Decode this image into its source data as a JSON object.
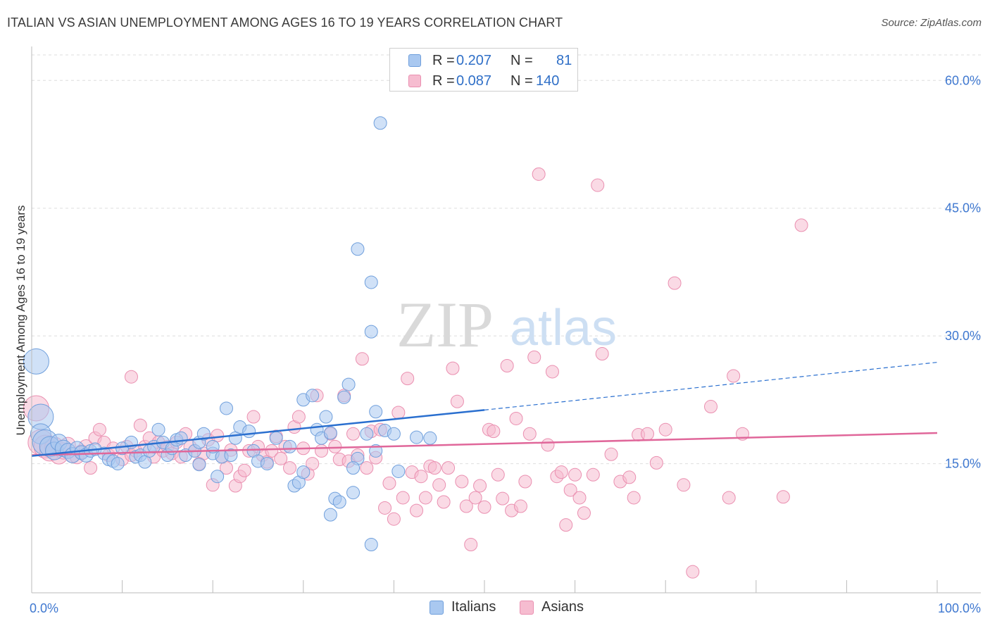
{
  "title": "ITALIAN VS ASIAN UNEMPLOYMENT AMONG AGES 16 TO 19 YEARS CORRELATION CHART",
  "source": "Source: ZipAtlas.com",
  "watermark": {
    "zip": "ZIP",
    "atlas": "atlas"
  },
  "legend": {
    "italians": {
      "r_label": "R =",
      "r_value": "0.207",
      "n_label": "N =",
      "n_value": "81"
    },
    "asians": {
      "r_label": "R =",
      "r_value": "0.087",
      "n_label": "N =",
      "n_value": "140"
    }
  },
  "bottom_legend": {
    "italians": "Italians",
    "asians": "Asians"
  },
  "colors": {
    "italians_fill": "#a9c8f0",
    "italians_stroke": "#6f9fdc",
    "italians_line": "#2a6fcf",
    "asians_fill": "#f6bcd0",
    "asians_stroke": "#ea8fb0",
    "asians_line": "#e0679a",
    "axis_text": "#3f78d0"
  },
  "chart_data": {
    "type": "scatter",
    "title": "ITALIAN VS ASIAN UNEMPLOYMENT AMONG AGES 16 TO 19 YEARS CORRELATION CHART",
    "xlabel": "",
    "ylabel": "Unemployment Among Ages 16 to 19 years",
    "xlim": [
      0,
      100
    ],
    "ylim": [
      0,
      63
    ],
    "x_tick_labels": [
      "0.0%",
      "100.0%"
    ],
    "y_ticks": [
      15,
      30,
      45,
      60
    ],
    "y_tick_labels": [
      "15.0%",
      "30.0%",
      "45.0%",
      "60.0%"
    ],
    "legend_position": "top-center",
    "series": [
      {
        "name": "Italians",
        "R": 0.207,
        "N": 81,
        "trend": {
          "x0": 0,
          "y0": 15.9,
          "x1": 50,
          "y1": 21.3,
          "dashed_to_x": 100,
          "dashed_to_y": 26.9
        },
        "points": [
          [
            0.5,
            27.0,
            2
          ],
          [
            1.0,
            20.5,
            2
          ],
          [
            1.0,
            18.5,
            1.6
          ],
          [
            1.5,
            17.5,
            2
          ],
          [
            2.0,
            17.0,
            1.6
          ],
          [
            2.5,
            16.5,
            1.4
          ],
          [
            3.0,
            17.5,
            1.3
          ],
          [
            3.5,
            16.8,
            1.3
          ],
          [
            4.0,
            16.5,
            1.2
          ],
          [
            4.5,
            16.0,
            1.2
          ],
          [
            5.0,
            16.8,
            1.1
          ],
          [
            5.5,
            16.3,
            1.1
          ],
          [
            6.0,
            16.0,
            1.1
          ],
          [
            6.5,
            16.5,
            1.0
          ],
          [
            7.0,
            16.7,
            1.0
          ],
          [
            8.0,
            16.2,
            1.0
          ],
          [
            8.5,
            15.5,
            1.0
          ],
          [
            9.0,
            15.3,
            1.0
          ],
          [
            9.5,
            15.0,
            1.0
          ],
          [
            10.0,
            16.8,
            1.0
          ],
          [
            11.0,
            17.5,
            1.0
          ],
          [
            11.5,
            15.8,
            1.0
          ],
          [
            12.0,
            16.0,
            1.0
          ],
          [
            12.5,
            15.2,
            1.0
          ],
          [
            13.0,
            16.5,
            1.0
          ],
          [
            13.5,
            17.0,
            1.0
          ],
          [
            14.0,
            19.0,
            1.0
          ],
          [
            14.5,
            17.5,
            1.0
          ],
          [
            15.0,
            16.0,
            1.0
          ],
          [
            15.5,
            16.8,
            1.0
          ],
          [
            16.0,
            17.8,
            1.0
          ],
          [
            16.5,
            18.0,
            1.0
          ],
          [
            17.0,
            16.0,
            1.0
          ],
          [
            18.0,
            16.5,
            1.0
          ],
          [
            18.5,
            14.9,
            1.0
          ],
          [
            18.5,
            17.5,
            1.0
          ],
          [
            19.0,
            18.5,
            1.0
          ],
          [
            20.0,
            16.2,
            1.0
          ],
          [
            20.0,
            17.0,
            1.0
          ],
          [
            21.0,
            15.8,
            1.0
          ],
          [
            21.5,
            21.5,
            1.0
          ],
          [
            22.0,
            16.0,
            1.0
          ],
          [
            22.5,
            18.0,
            1.0
          ],
          [
            23.0,
            19.3,
            1.0
          ],
          [
            24.0,
            18.8,
            1.0
          ],
          [
            24.5,
            16.5,
            1.0
          ],
          [
            25.0,
            15.3,
            1.0
          ],
          [
            26.0,
            15.0,
            1.0
          ],
          [
            27.0,
            18.0,
            1.0
          ],
          [
            28.5,
            17.0,
            1.0
          ],
          [
            29.0,
            12.4,
            1.0
          ],
          [
            29.5,
            12.8,
            1.0
          ],
          [
            30.0,
            14.0,
            1.0
          ],
          [
            30.0,
            22.5,
            1.0
          ],
          [
            31.0,
            23.0,
            1.0
          ],
          [
            31.5,
            19.0,
            1.0
          ],
          [
            32.0,
            18.0,
            1.0
          ],
          [
            32.5,
            20.5,
            1.0
          ],
          [
            33.0,
            18.6,
            1.0
          ],
          [
            33.5,
            10.9,
            1.0
          ],
          [
            34.0,
            10.5,
            1.0
          ],
          [
            34.5,
            22.8,
            1.0
          ],
          [
            35.0,
            24.3,
            1.0
          ],
          [
            35.5,
            11.6,
            1.0
          ],
          [
            36.0,
            15.6,
            1.0
          ],
          [
            37.0,
            18.5,
            1.0
          ],
          [
            38.0,
            16.5,
            1.0
          ],
          [
            36.0,
            40.2,
            1.0
          ],
          [
            37.5,
            36.3,
            1.0
          ],
          [
            37.5,
            30.5,
            1.0
          ],
          [
            38.0,
            21.1,
            1.0
          ],
          [
            38.5,
            55.0,
            1.0
          ],
          [
            39.0,
            18.9,
            1.0
          ],
          [
            40.0,
            18.5,
            1.0
          ],
          [
            40.5,
            14.1,
            1.0
          ],
          [
            42.5,
            18.1,
            1.0
          ],
          [
            44.0,
            18.0,
            1.0
          ],
          [
            37.5,
            5.5,
            1.0
          ],
          [
            33.0,
            9.0,
            1.0
          ],
          [
            35.5,
            14.5,
            1.0
          ],
          [
            20.5,
            13.5,
            1.0
          ]
        ]
      },
      {
        "name": "Asians",
        "R": 0.087,
        "N": 140,
        "trend": {
          "x0": 0,
          "y0": 16.0,
          "x1": 100,
          "y1": 18.6
        },
        "points": [
          [
            0.5,
            21.5,
            2
          ],
          [
            1.0,
            17.5,
            2
          ],
          [
            1.5,
            17.0,
            1.8
          ],
          [
            2.0,
            16.5,
            1.6
          ],
          [
            2.5,
            17.0,
            1.5
          ],
          [
            3.0,
            16.0,
            1.4
          ],
          [
            3.5,
            16.5,
            1.3
          ],
          [
            4.0,
            17.2,
            1.2
          ],
          [
            4.5,
            16.0,
            1.2
          ],
          [
            5.0,
            15.8,
            1.1
          ],
          [
            5.5,
            16.4,
            1.1
          ],
          [
            6.0,
            17.0,
            1.1
          ],
          [
            6.5,
            14.5,
            1.0
          ],
          [
            7.0,
            18.0,
            1.0
          ],
          [
            7.5,
            19.0,
            1.0
          ],
          [
            8.0,
            17.5,
            1.0
          ],
          [
            8.5,
            16.0,
            1.0
          ],
          [
            9.0,
            16.8,
            1.0
          ],
          [
            10.0,
            15.5,
            1.0
          ],
          [
            10.5,
            17.0,
            1.0
          ],
          [
            11.0,
            16.0,
            1.0
          ],
          [
            11.5,
            16.5,
            1.0
          ],
          [
            12.0,
            19.5,
            1.0
          ],
          [
            12.5,
            17.0,
            1.0
          ],
          [
            13.0,
            18.0,
            1.0
          ],
          [
            13.5,
            15.8,
            1.0
          ],
          [
            14.0,
            17.5,
            1.0
          ],
          [
            14.5,
            16.5,
            1.0
          ],
          [
            15.0,
            17.0,
            1.0
          ],
          [
            15.5,
            16.2,
            1.0
          ],
          [
            16.0,
            17.5,
            1.0
          ],
          [
            16.5,
            15.8,
            1.0
          ],
          [
            17.0,
            18.5,
            1.0
          ],
          [
            17.5,
            17.0,
            1.0
          ],
          [
            18.0,
            16.5,
            1.0
          ],
          [
            18.5,
            15.0,
            1.0
          ],
          [
            19.0,
            16.2,
            1.0
          ],
          [
            19.5,
            17.8,
            1.0
          ],
          [
            20.0,
            12.5,
            1.0
          ],
          [
            20.5,
            18.3,
            1.0
          ],
          [
            21.0,
            15.8,
            1.0
          ],
          [
            21.5,
            14.5,
            1.0
          ],
          [
            22.0,
            16.6,
            1.0
          ],
          [
            22.5,
            12.4,
            1.0
          ],
          [
            23.0,
            13.5,
            1.0
          ],
          [
            23.5,
            14.2,
            1.0
          ],
          [
            24.0,
            16.5,
            1.0
          ],
          [
            24.5,
            20.5,
            1.0
          ],
          [
            25.0,
            17.0,
            1.0
          ],
          [
            25.5,
            16.0,
            1.0
          ],
          [
            26.0,
            15.2,
            1.0
          ],
          [
            26.5,
            16.5,
            1.0
          ],
          [
            27.0,
            18.2,
            1.0
          ],
          [
            27.5,
            15.6,
            1.0
          ],
          [
            28.0,
            17.0,
            1.0
          ],
          [
            28.5,
            14.5,
            1.0
          ],
          [
            29.0,
            19.3,
            1.0
          ],
          [
            29.5,
            20.5,
            1.0
          ],
          [
            30.0,
            16.8,
            1.0
          ],
          [
            30.5,
            13.8,
            1.0
          ],
          [
            31.0,
            15.0,
            1.0
          ],
          [
            31.5,
            23.0,
            1.0
          ],
          [
            32.0,
            16.5,
            1.0
          ],
          [
            33.0,
            18.5,
            1.0
          ],
          [
            33.5,
            17.0,
            1.0
          ],
          [
            34.0,
            15.5,
            1.0
          ],
          [
            34.5,
            23.0,
            1.0
          ],
          [
            35.0,
            15.3,
            1.0
          ],
          [
            35.5,
            18.5,
            1.0
          ],
          [
            36.0,
            16.0,
            1.0
          ],
          [
            36.5,
            27.3,
            1.0
          ],
          [
            37.0,
            14.5,
            1.0
          ],
          [
            37.5,
            18.8,
            1.0
          ],
          [
            38.0,
            15.7,
            1.0
          ],
          [
            38.5,
            19.0,
            1.0
          ],
          [
            39.0,
            9.8,
            1.0
          ],
          [
            39.5,
            12.7,
            1.0
          ],
          [
            40.0,
            8.5,
            1.0
          ],
          [
            40.5,
            21.0,
            1.0
          ],
          [
            41.0,
            11.0,
            1.0
          ],
          [
            41.5,
            25.0,
            1.0
          ],
          [
            42.0,
            14.0,
            1.0
          ],
          [
            42.5,
            9.5,
            1.0
          ],
          [
            43.0,
            13.5,
            1.0
          ],
          [
            43.5,
            11.0,
            1.0
          ],
          [
            44.0,
            14.7,
            1.0
          ],
          [
            44.5,
            14.5,
            1.0
          ],
          [
            45.0,
            12.5,
            1.0
          ],
          [
            45.5,
            10.5,
            1.0
          ],
          [
            46.0,
            14.5,
            1.0
          ],
          [
            46.5,
            26.2,
            1.0
          ],
          [
            47.0,
            22.3,
            1.0
          ],
          [
            47.5,
            12.9,
            1.0
          ],
          [
            48.0,
            10.0,
            1.0
          ],
          [
            48.5,
            5.5,
            1.0
          ],
          [
            49.0,
            11.0,
            1.0
          ],
          [
            49.5,
            12.4,
            1.0
          ],
          [
            50.0,
            9.9,
            1.0
          ],
          [
            50.5,
            19.0,
            1.0
          ],
          [
            51.0,
            18.8,
            1.0
          ],
          [
            51.5,
            13.7,
            1.0
          ],
          [
            52.0,
            10.9,
            1.0
          ],
          [
            52.5,
            26.5,
            1.0
          ],
          [
            53.0,
            9.5,
            1.0
          ],
          [
            53.5,
            20.3,
            1.0
          ],
          [
            54.0,
            10.0,
            1.0
          ],
          [
            54.5,
            12.9,
            1.0
          ],
          [
            55.0,
            18.5,
            1.0
          ],
          [
            55.5,
            27.5,
            1.0
          ],
          [
            56.0,
            49.0,
            1.0
          ],
          [
            57.0,
            17.2,
            1.0
          ],
          [
            57.5,
            25.8,
            1.0
          ],
          [
            58.0,
            13.5,
            1.0
          ],
          [
            58.5,
            14.0,
            1.0
          ],
          [
            59.0,
            7.8,
            1.0
          ],
          [
            59.5,
            11.9,
            1.0
          ],
          [
            60.0,
            13.7,
            1.0
          ],
          [
            60.5,
            11.0,
            1.0
          ],
          [
            61.0,
            9.2,
            1.0
          ],
          [
            62.0,
            13.7,
            1.0
          ],
          [
            62.5,
            47.7,
            1.0
          ],
          [
            63.0,
            27.9,
            1.0
          ],
          [
            64.0,
            16.1,
            1.0
          ],
          [
            65.0,
            12.9,
            1.0
          ],
          [
            66.0,
            13.4,
            1.0
          ],
          [
            66.5,
            11.0,
            1.0
          ],
          [
            67.0,
            18.4,
            1.0
          ],
          [
            68.0,
            18.5,
            1.0
          ],
          [
            69.0,
            15.1,
            1.0
          ],
          [
            70.0,
            19.0,
            1.0
          ],
          [
            71.0,
            36.2,
            1.0
          ],
          [
            72.0,
            12.5,
            1.0
          ],
          [
            73.0,
            2.3,
            1.0
          ],
          [
            75.0,
            21.7,
            1.0
          ],
          [
            77.5,
            25.3,
            1.0
          ],
          [
            78.5,
            18.5,
            1.0
          ],
          [
            85.0,
            43.0,
            1.0
          ],
          [
            77.0,
            11.0,
            1.0
          ],
          [
            83.0,
            11.1,
            1.0
          ],
          [
            11.0,
            25.2,
            1.0
          ]
        ]
      }
    ]
  }
}
